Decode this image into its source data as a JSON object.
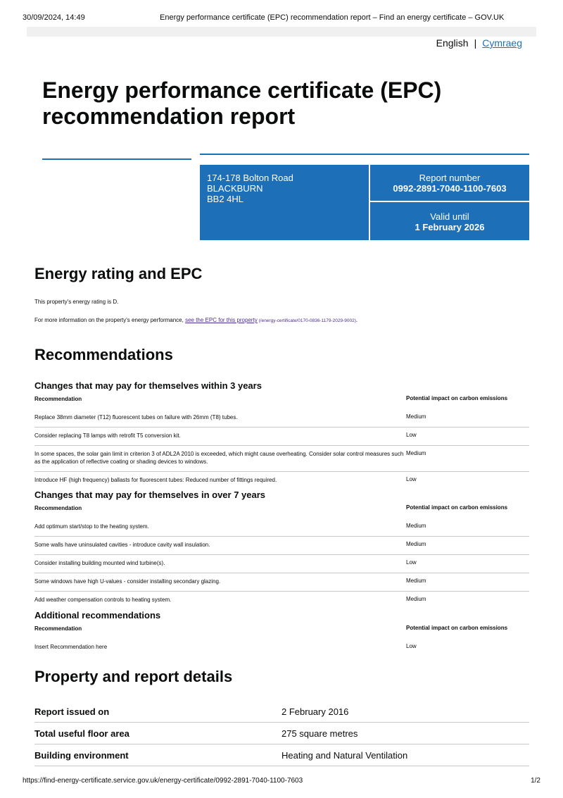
{
  "print_header": {
    "datetime": "30/09/2024, 14:49",
    "page_title": "Energy performance certificate (EPC) recommendation report – Find an energy certificate – GOV.UK"
  },
  "language": {
    "current": "English",
    "separator": "|",
    "other": "Cymraeg"
  },
  "title": "Energy performance certificate (EPC) recommendation report",
  "summary": {
    "address": [
      "174-178 Bolton Road",
      "BLACKBURN",
      "BB2 4HL"
    ],
    "report_number_label": "Report number",
    "report_number": "0992-2891-7040-1100-7603",
    "valid_until_label": "Valid until",
    "valid_until": "1 February 2026"
  },
  "energy": {
    "heading": "Energy rating and EPC",
    "rating_text": "This property's energy rating is D.",
    "more_info_prefix": "For more information on the property's energy performance, ",
    "link_text": "see the EPC for this property",
    "link_path": " (/energy-certificate/0170-0836-1179-2029-9002)",
    "suffix": "."
  },
  "recommendations": {
    "heading": "Recommendations",
    "col1": "Recommendation",
    "col2": "Potential impact on carbon emissions",
    "groups": [
      {
        "title": "Changes that may pay for themselves within 3 years",
        "rows": [
          {
            "text": "Replace 38mm diameter (T12) fluorescent tubes on failure with 26mm (T8) tubes.",
            "impact": "Medium"
          },
          {
            "text": "Consider replacing T8 lamps with retrofit T5 conversion kit.",
            "impact": "Low"
          },
          {
            "text": "In some spaces, the solar gain limit in criterion 3 of ADL2A 2010 is exceeded, which might cause overheating. Consider solar control measures such as the application of reflective coating or shading devices to windows.",
            "impact": "Medium"
          },
          {
            "text": "Introduce HF (high frequency) ballasts for fluorescent tubes: Reduced number of fittings required.",
            "impact": "Low"
          }
        ]
      },
      {
        "title": "Changes that may pay for themselves in over 7 years",
        "rows": [
          {
            "text": "Add optimum start/stop to the heating system.",
            "impact": "Medium"
          },
          {
            "text": "Some walls have uninsulated cavities - introduce cavity wall insulation.",
            "impact": "Medium"
          },
          {
            "text": "Consider installing building mounted wind turbine(s).",
            "impact": "Low"
          },
          {
            "text": "Some windows have high U-values - consider installing secondary glazing.",
            "impact": "Medium"
          },
          {
            "text": "Add weather compensation controls to heating system.",
            "impact": "Medium"
          }
        ]
      },
      {
        "title": "Additional recommendations",
        "rows": [
          {
            "text": "Insert Recommendation here",
            "impact": "Low"
          }
        ]
      }
    ]
  },
  "details": {
    "heading": "Property and report details",
    "rows": [
      {
        "label": "Report issued on",
        "value": "2 February 2016"
      },
      {
        "label": "Total useful floor area",
        "value": "275 square metres"
      },
      {
        "label": "Building environment",
        "value": "Heating and Natural Ventilation"
      }
    ]
  },
  "print_footer": {
    "url": "https://find-energy-certificate.service.gov.uk/energy-certificate/0992-2891-7040-1100-7603",
    "page": "1/2"
  }
}
